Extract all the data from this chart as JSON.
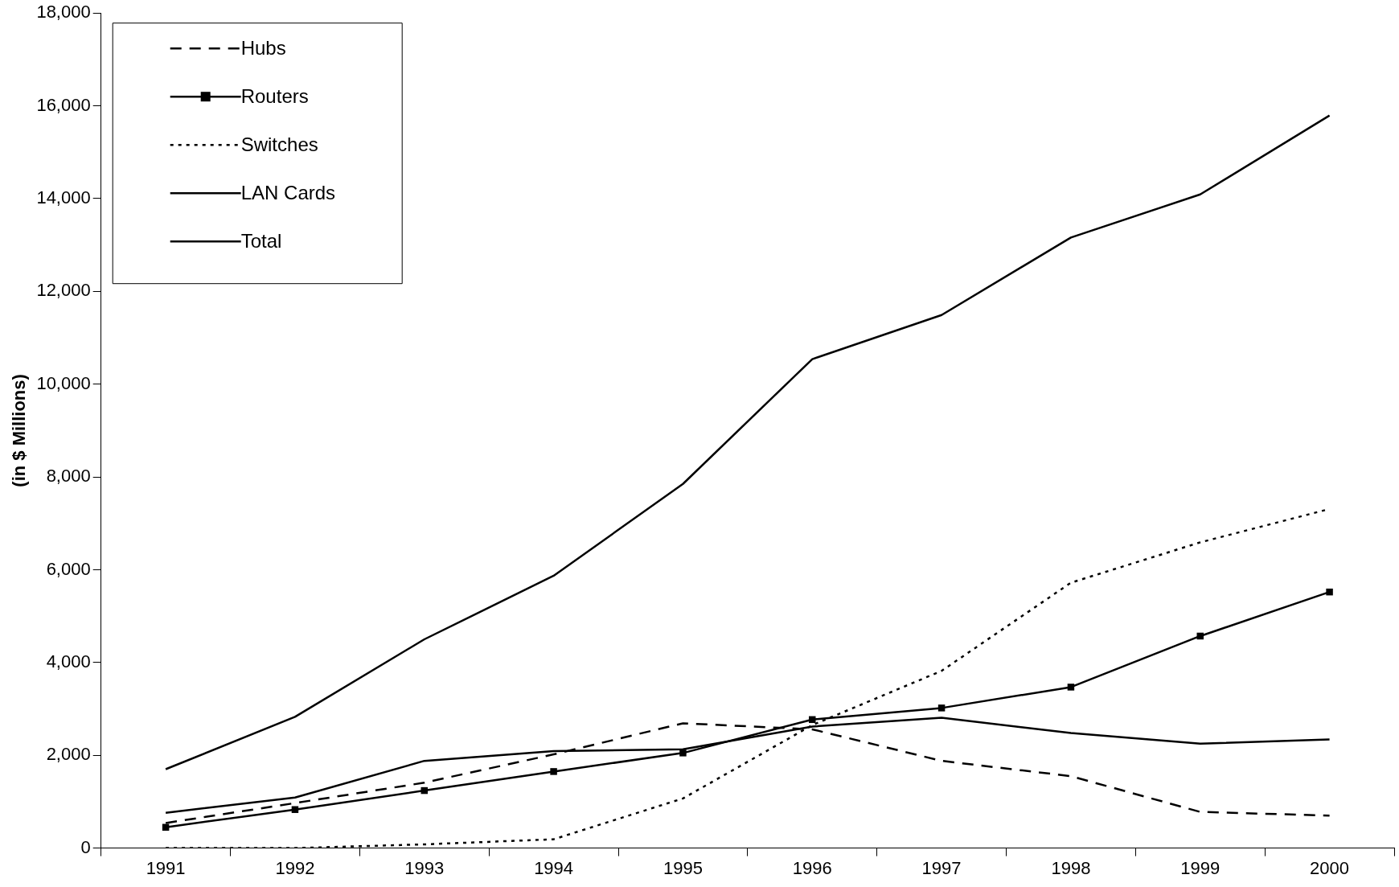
{
  "chart_data": {
    "type": "line",
    "ylabel": "(in $ Millions)",
    "categories": [
      "1991",
      "1992",
      "1993",
      "1994",
      "1995",
      "1996",
      "1997",
      "1998",
      "1999",
      "2000"
    ],
    "ylim": [
      0,
      18000
    ],
    "yticks": [
      {
        "value": 0,
        "label": "0"
      },
      {
        "value": 2000,
        "label": "2,000"
      },
      {
        "value": 4000,
        "label": "4,000"
      },
      {
        "value": 6000,
        "label": "6,000"
      },
      {
        "value": 8000,
        "label": "8,000"
      },
      {
        "value": 10000,
        "label": "10,000"
      },
      {
        "value": 12000,
        "label": "12,000"
      },
      {
        "value": 14000,
        "label": "14,000"
      },
      {
        "value": 16000,
        "label": "16,000"
      },
      {
        "value": 18000,
        "label": "18,000"
      }
    ],
    "grid": false,
    "legend": "top left",
    "series": [
      {
        "name": "Hubs",
        "color": "#000000",
        "line_style": "dashed",
        "marker": "none",
        "values": [
          540,
          970,
          1410,
          2020,
          2690,
          2560,
          1880,
          1550,
          780,
          700
        ]
      },
      {
        "name": "Routers",
        "color": "#000000",
        "line_style": "solid",
        "marker": "square",
        "values": [
          450,
          830,
          1240,
          1650,
          2050,
          2770,
          3020,
          3470,
          4570,
          5520
        ]
      },
      {
        "name": "Switches",
        "color": "#000000",
        "line_style": "dotted",
        "marker": "none",
        "values": [
          0,
          0,
          80,
          190,
          1070,
          2650,
          3820,
          5720,
          6590,
          7310
        ]
      },
      {
        "name": "LAN Cards",
        "color": "#000000",
        "line_style": "solid",
        "marker": "none",
        "values": [
          760,
          1090,
          1880,
          2090,
          2130,
          2620,
          2810,
          2480,
          2250,
          2340
        ]
      },
      {
        "name": "Total",
        "color": "#000000",
        "line_style": "solid",
        "marker": "none",
        "values": [
          1700,
          2830,
          4500,
          5870,
          7850,
          10540,
          11490,
          13160,
          14090,
          15790
        ]
      }
    ]
  }
}
